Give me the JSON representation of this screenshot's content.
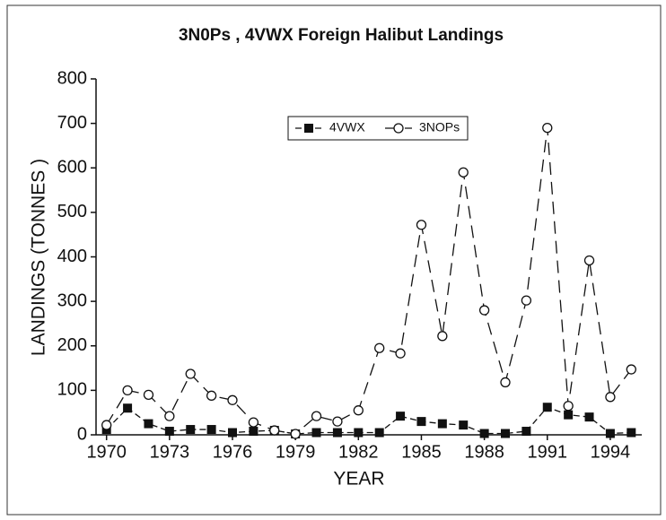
{
  "chart_data": {
    "type": "line",
    "title": "3N0Ps , 4VWX Foreign Halibut Landings",
    "x_label": "YEAR",
    "y_label": "LANDINGS (TONNES )",
    "x": [
      1970,
      1971,
      1972,
      1973,
      1974,
      1975,
      1976,
      1977,
      1978,
      1979,
      1980,
      1981,
      1982,
      1983,
      1984,
      1985,
      1986,
      1987,
      1988,
      1989,
      1990,
      1991,
      1992,
      1993,
      1994,
      1995
    ],
    "series": [
      {
        "name": "4VWX",
        "color": "#111111",
        "marker": "square",
        "linestyle": "dashed",
        "values": [
          12,
          60,
          25,
          8,
          12,
          12,
          5,
          8,
          10,
          2,
          5,
          5,
          5,
          5,
          42,
          30,
          25,
          22,
          3,
          3,
          8,
          62,
          45,
          40,
          3,
          5
        ]
      },
      {
        "name": "3NOPs",
        "color": "#111111",
        "marker": "circle",
        "linestyle": "long-dashed",
        "values": [
          22,
          100,
          90,
          42,
          137,
          88,
          78,
          28,
          10,
          2,
          42,
          30,
          55,
          195,
          183,
          472,
          222,
          590,
          280,
          118,
          302,
          690,
          65,
          392,
          85,
          147
        ]
      }
    ],
    "xlim": [
      1969.5,
      1995.5
    ],
    "xticks": [
      1970,
      1973,
      1976,
      1979,
      1982,
      1985,
      1988,
      1991,
      1994
    ],
    "ylim": [
      0,
      800
    ],
    "yticks": [
      0,
      100,
      200,
      300,
      400,
      500,
      600,
      700,
      800
    ],
    "grid": false,
    "legend": "upper center"
  }
}
